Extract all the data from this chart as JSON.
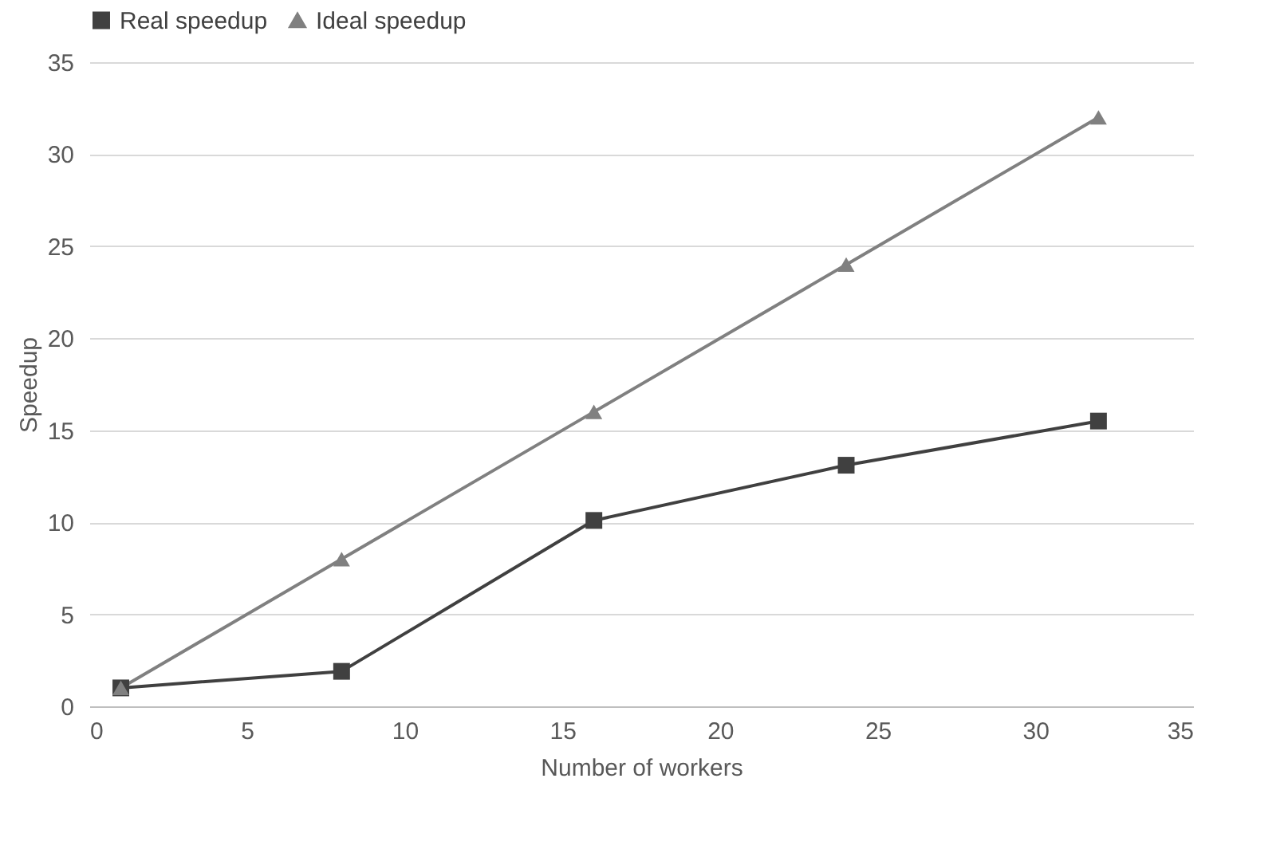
{
  "chart_data": {
    "type": "line",
    "xlabel": "Number of workers",
    "ylabel": "Speedup",
    "x": [
      1,
      8,
      16,
      24,
      32
    ],
    "series": [
      {
        "name": "Real speedup",
        "color": "#404040",
        "marker": "square",
        "values": [
          1,
          1.9,
          10.1,
          13.1,
          15.5
        ]
      },
      {
        "name": "Ideal speedup",
        "color": "#808080",
        "marker": "triangle",
        "values": [
          1,
          8,
          16,
          24,
          32
        ]
      }
    ],
    "xlim": [
      0,
      35
    ],
    "xticks": [
      0,
      5,
      10,
      15,
      20,
      25,
      30,
      35
    ],
    "ylim": [
      0,
      35
    ],
    "yticks": [
      0,
      5,
      10,
      15,
      20,
      25,
      30,
      35
    ],
    "grid": "y",
    "legend": "top",
    "line_style": "solid"
  }
}
